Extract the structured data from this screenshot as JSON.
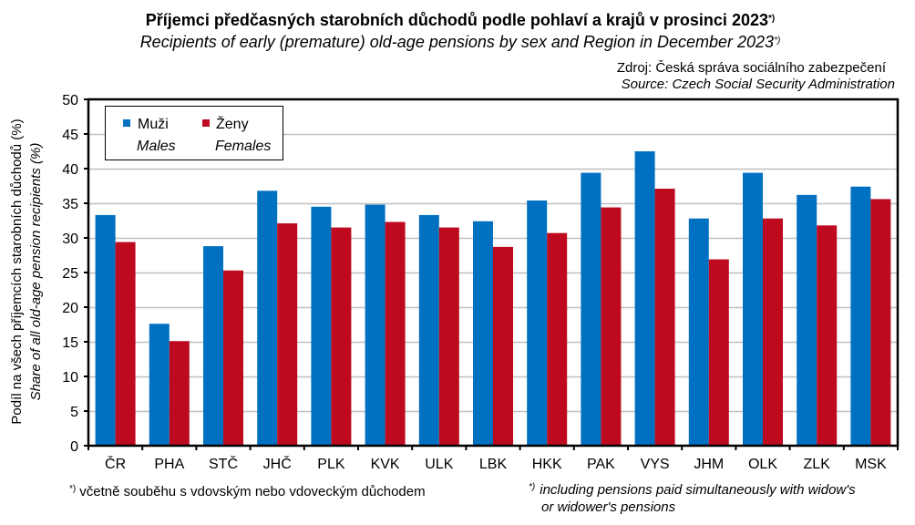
{
  "chart_data": {
    "type": "bar",
    "title": "Příjemci předčasných starobních důchodů podle pohlaví a krajů v prosinci 2023",
    "subtitle": "Recipients of early (premature) old-age pensions by sex and Region in December 2023",
    "footnote_mark": "*)",
    "source": "Zdroj: Česká správa sociálního zabezpečení",
    "source_en": "Source: Czech Social Security Administration",
    "ylabel": "Podíl na všech příjemcích starobních důchodů (%)",
    "ylabel_en": "Share of all old-age pension recipients (%)",
    "xlabel": "",
    "ylim": [
      0,
      50
    ],
    "yticks": [
      "0",
      "5",
      "10",
      "15",
      "20",
      "25",
      "30",
      "35",
      "40",
      "45",
      "50"
    ],
    "grid": true,
    "legend_placement": "top-left",
    "categories": [
      "ČR",
      "PHA",
      "STČ",
      "JHČ",
      "PLK",
      "KVK",
      "ULK",
      "LBK",
      "HKK",
      "PAK",
      "VYS",
      "JHM",
      "OLK",
      "ZLK",
      "MSK"
    ],
    "series": [
      {
        "key": "males",
        "name": "Muži",
        "name_en": "Males",
        "color": "#0070C0",
        "values": [
          33.3,
          17.6,
          28.8,
          36.8,
          34.5,
          34.8,
          33.3,
          32.4,
          35.4,
          39.4,
          42.5,
          32.8,
          39.4,
          36.2,
          37.4
        ]
      },
      {
        "key": "females",
        "name": "Ženy",
        "name_en": "Females",
        "color": "#BE0A1E",
        "values": [
          29.4,
          15.1,
          25.3,
          32.1,
          31.5,
          32.3,
          31.5,
          28.7,
          30.7,
          34.4,
          37.1,
          26.9,
          32.8,
          31.8,
          35.6
        ]
      }
    ],
    "footnote": "včetně souběhu s vdovským nebo vdoveckým důchodem",
    "footnote_en_line1": "including pensions paid simultaneously with widow's",
    "footnote_en_line2": "or widower's pensions"
  }
}
